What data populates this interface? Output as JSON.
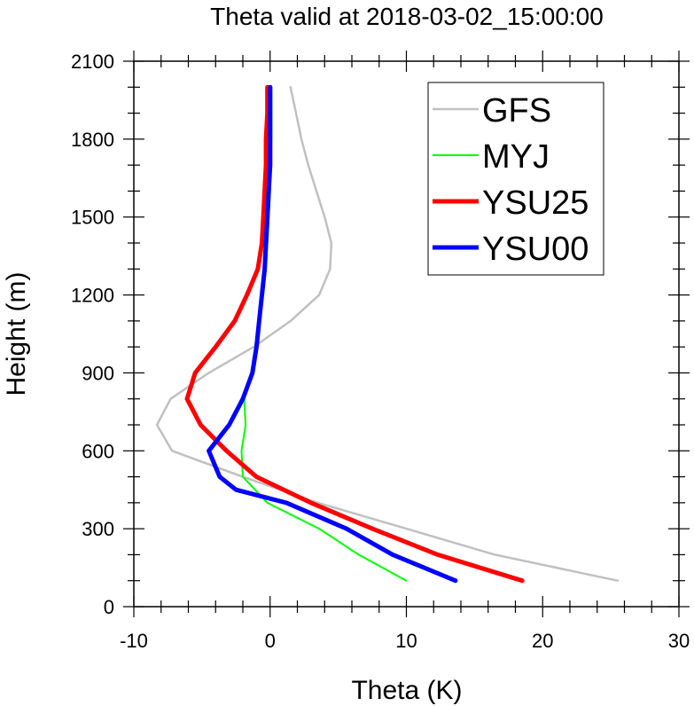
{
  "chart_data": {
    "type": "line",
    "title": "Theta valid at 2018-03-02_15:00:00",
    "xlabel": "Theta (K)",
    "ylabel": "Height (m)",
    "xlim": [
      -10,
      30
    ],
    "ylim": [
      0,
      2100
    ],
    "xticks": [
      -10,
      0,
      10,
      20,
      30
    ],
    "yticks": [
      0,
      300,
      600,
      900,
      1200,
      1500,
      1800,
      2100
    ],
    "legend_position": "top-right",
    "series": [
      {
        "name": "GFS",
        "color": "#c0c0c0",
        "points": [
          [
            25.5,
            100
          ],
          [
            16.5,
            200
          ],
          [
            10.0,
            300
          ],
          [
            3.5,
            400
          ],
          [
            -2.0,
            500
          ],
          [
            -7.2,
            600
          ],
          [
            -8.3,
            700
          ],
          [
            -7.3,
            800
          ],
          [
            -4.5,
            900
          ],
          [
            -1.2,
            1000
          ],
          [
            1.5,
            1100
          ],
          [
            3.6,
            1200
          ],
          [
            4.4,
            1300
          ],
          [
            4.5,
            1400
          ],
          [
            4.0,
            1500
          ],
          [
            3.4,
            1600
          ],
          [
            2.8,
            1700
          ],
          [
            2.3,
            1800
          ],
          [
            1.9,
            1900
          ],
          [
            1.5,
            2000
          ]
        ]
      },
      {
        "name": "MYJ",
        "color": "#00ff00",
        "points": [
          [
            10.0,
            100
          ],
          [
            6.5,
            200
          ],
          [
            3.6,
            300
          ],
          [
            -0.2,
            400
          ],
          [
            -2.0,
            500
          ],
          [
            -2.1,
            600
          ],
          [
            -1.8,
            700
          ],
          [
            -1.9,
            800
          ],
          [
            -1.4,
            900
          ],
          [
            -1.1,
            1000
          ],
          [
            -0.8,
            1100
          ],
          [
            -0.5,
            1200
          ],
          [
            -0.3,
            1300
          ],
          [
            -0.2,
            1400
          ],
          [
            -0.1,
            1500
          ],
          [
            0.0,
            1600
          ],
          [
            0.0,
            1700
          ],
          [
            0.1,
            1800
          ],
          [
            0.1,
            1900
          ],
          [
            0.1,
            2000
          ]
        ]
      },
      {
        "name": "YSU25",
        "color": "#ff0000",
        "points": [
          [
            18.5,
            100
          ],
          [
            12.3,
            200
          ],
          [
            7.5,
            300
          ],
          [
            3.0,
            400
          ],
          [
            -1.0,
            500
          ],
          [
            -3.2,
            600
          ],
          [
            -5.1,
            700
          ],
          [
            -6.1,
            800
          ],
          [
            -5.5,
            900
          ],
          [
            -4.0,
            1000
          ],
          [
            -2.6,
            1100
          ],
          [
            -1.7,
            1200
          ],
          [
            -0.9,
            1300
          ],
          [
            -0.6,
            1400
          ],
          [
            -0.5,
            1500
          ],
          [
            -0.4,
            1600
          ],
          [
            -0.3,
            1700
          ],
          [
            -0.3,
            1800
          ],
          [
            -0.2,
            1900
          ],
          [
            -0.2,
            2000
          ]
        ]
      },
      {
        "name": "YSU00",
        "color": "#0000ff",
        "points": [
          [
            13.6,
            100
          ],
          [
            9.0,
            200
          ],
          [
            5.6,
            300
          ],
          [
            1.2,
            400
          ],
          [
            -2.5,
            450
          ],
          [
            -3.7,
            500
          ],
          [
            -4.5,
            600
          ],
          [
            -3.0,
            700
          ],
          [
            -2.0,
            800
          ],
          [
            -1.3,
            900
          ],
          [
            -1.0,
            1000
          ],
          [
            -0.8,
            1100
          ],
          [
            -0.6,
            1200
          ],
          [
            -0.4,
            1300
          ],
          [
            -0.3,
            1400
          ],
          [
            -0.2,
            1500
          ],
          [
            -0.1,
            1600
          ],
          [
            0.0,
            1700
          ],
          [
            0.0,
            1800
          ],
          [
            0.0,
            1900
          ],
          [
            0.0,
            2000
          ]
        ]
      }
    ]
  }
}
